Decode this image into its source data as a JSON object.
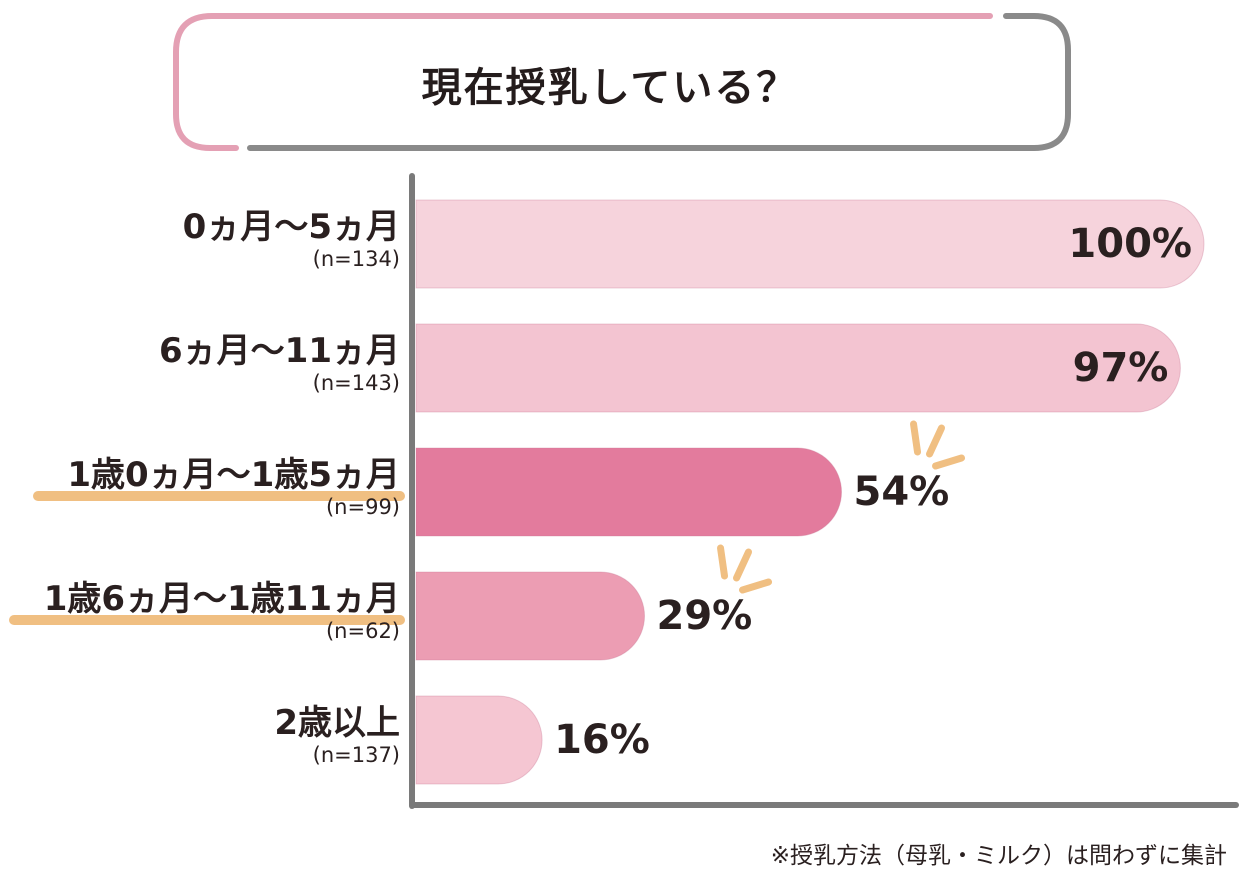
{
  "chart_data": {
    "type": "bar",
    "orientation": "horizontal",
    "title": "現在授乳している？",
    "categories": [
      {
        "label": "0ヵ月〜5ヵ月",
        "n": "(n=134)"
      },
      {
        "label": "6ヵ月〜11ヵ月",
        "n": "(n=143)"
      },
      {
        "label": "1歳0ヵ月〜1歳5ヵ月",
        "n": "(n=99)",
        "highlight": true
      },
      {
        "label": "1歳6ヵ月〜1歳11ヵ月",
        "n": "(n=62)",
        "highlight": true
      },
      {
        "label": "2歳以上",
        "n": "(n=137)"
      }
    ],
    "values": [
      100,
      97,
      54,
      29,
      16
    ],
    "value_labels": [
      "100%",
      "97%",
      "54%",
      "29%",
      "16%"
    ],
    "xlim": [
      0,
      100
    ],
    "grid": false,
    "bar_colors": [
      "#f6d3dc",
      "#f3c4d1",
      "#e37b9d",
      "#ec9db3",
      "#f5c6d2"
    ],
    "footnote": "※授乳方法（母乳・ミルク）は問わずに集計"
  },
  "colors": {
    "title_frame_pink": "#e4a0b4",
    "title_frame_gray": "#8a8a8a",
    "axis": "#7a7a7a",
    "underline_highlight": "#f0bf82",
    "spark": "#f0bf82"
  }
}
